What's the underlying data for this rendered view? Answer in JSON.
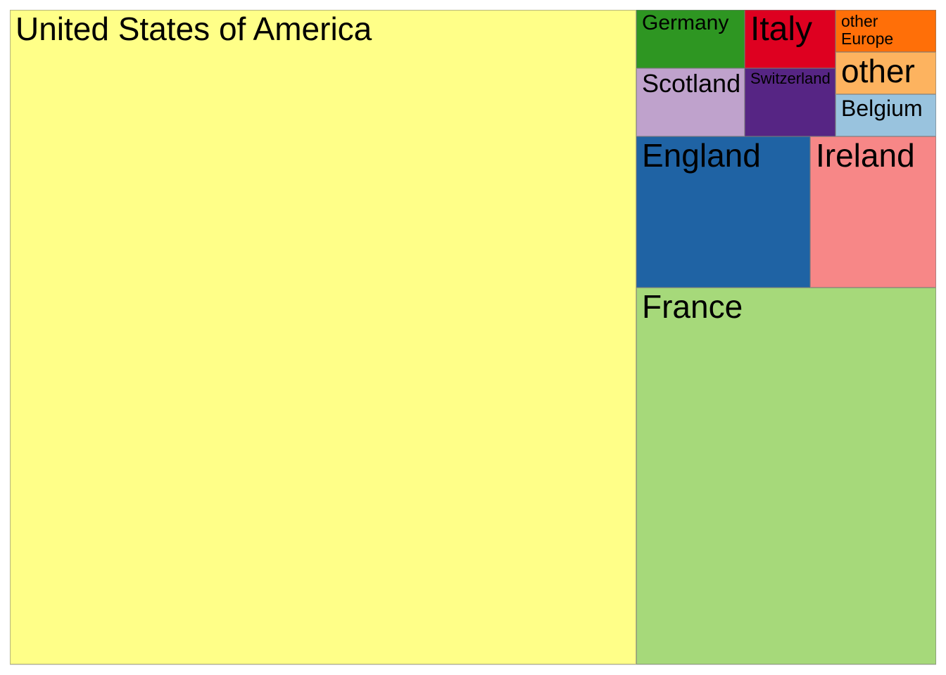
{
  "chart_data": {
    "type": "treemap",
    "title": "",
    "items": [
      {
        "label": "United States of America",
        "value": 63.4,
        "color": "#ffff88"
      },
      {
        "label": "France",
        "value": 17.3,
        "color": "#a6d97a"
      },
      {
        "label": "England",
        "value": 5.9,
        "color": "#1f63a4"
      },
      {
        "label": "Ireland",
        "value": 4.4,
        "color": "#f78787"
      },
      {
        "label": "Scotland",
        "value": 2.1,
        "color": "#bfa2cc"
      },
      {
        "label": "Germany",
        "value": 1.9,
        "color": "#2e9622"
      },
      {
        "label": "Switzerland",
        "value": 1.7,
        "color": "#562584"
      },
      {
        "label": "Italy",
        "value": 1.4,
        "color": "#de0020"
      },
      {
        "label": "other",
        "value": 1.0,
        "color": "#fdb35f"
      },
      {
        "label": "Belgium",
        "value": 1.0,
        "color": "#99c3de"
      },
      {
        "label": "other Europe",
        "value": 1.0,
        "color": "#ff6f08"
      }
    ]
  }
}
